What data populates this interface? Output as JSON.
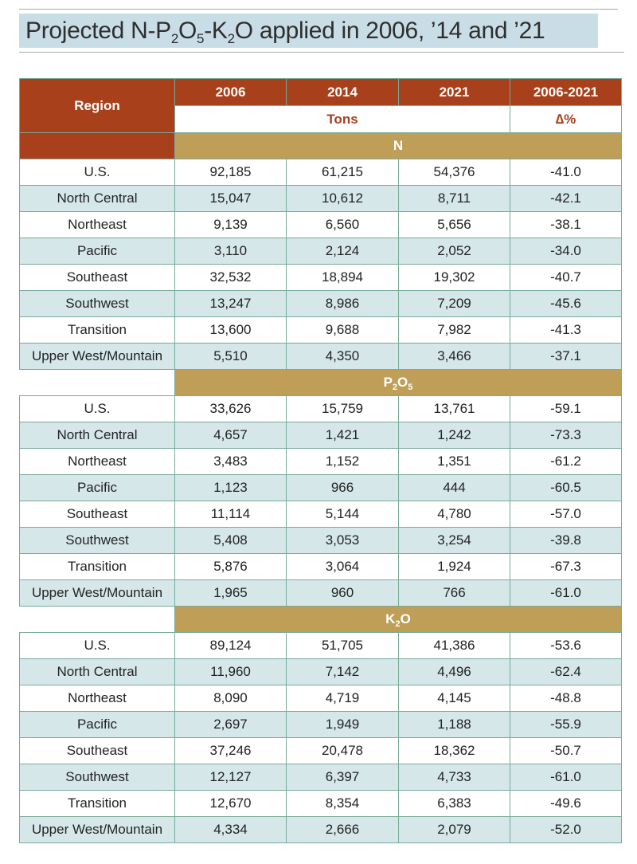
{
  "title": {
    "prefix": "Projected N-P",
    "sub1": "2",
    "mid1": "O",
    "sub2": "5",
    "mid2": "-K",
    "sub3": "2",
    "suffix": "O applied in 2006, ’14 and ’21"
  },
  "header": {
    "region": "Region",
    "years": [
      "2006",
      "2014",
      "2021",
      "2006-2021"
    ],
    "units_tons": "Tons",
    "units_delta": "∆%"
  },
  "sections": [
    {
      "label": "N",
      "label_parts": {
        "a": "N",
        "s1": "",
        "b": "",
        "s2": ""
      },
      "rows": [
        {
          "region": "U.S.",
          "v2006": "92,185",
          "v2014": "61,215",
          "v2021": "54,376",
          "delta": "-41.0"
        },
        {
          "region": "North Central",
          "v2006": "15,047",
          "v2014": "10,612",
          "v2021": "8,711",
          "delta": "-42.1"
        },
        {
          "region": "Northeast",
          "v2006": "9,139",
          "v2014": "6,560",
          "v2021": "5,656",
          "delta": "-38.1"
        },
        {
          "region": "Pacific",
          "v2006": "3,110",
          "v2014": "2,124",
          "v2021": "2,052",
          "delta": "-34.0"
        },
        {
          "region": "Southeast",
          "v2006": "32,532",
          "v2014": "18,894",
          "v2021": "19,302",
          "delta": "-40.7"
        },
        {
          "region": "Southwest",
          "v2006": "13,247",
          "v2014": "8,986",
          "v2021": "7,209",
          "delta": "-45.6"
        },
        {
          "region": "Transition",
          "v2006": "13,600",
          "v2014": "9,688",
          "v2021": "7,982",
          "delta": "-41.3"
        },
        {
          "region": "Upper West/Mountain",
          "v2006": "5,510",
          "v2014": "4,350",
          "v2021": "3,466",
          "delta": "-37.1"
        }
      ]
    },
    {
      "label": "P2O5",
      "label_parts": {
        "a": "P",
        "s1": "2",
        "b": "O",
        "s2": "5"
      },
      "rows": [
        {
          "region": "U.S.",
          "v2006": "33,626",
          "v2014": "15,759",
          "v2021": "13,761",
          "delta": "-59.1"
        },
        {
          "region": "North Central",
          "v2006": "4,657",
          "v2014": "1,421",
          "v2021": "1,242",
          "delta": "-73.3"
        },
        {
          "region": "Northeast",
          "v2006": "3,483",
          "v2014": "1,152",
          "v2021": "1,351",
          "delta": "-61.2"
        },
        {
          "region": "Pacific",
          "v2006": "1,123",
          "v2014": "966",
          "v2021": "444",
          "delta": "-60.5"
        },
        {
          "region": "Southeast",
          "v2006": "11,114",
          "v2014": "5,144",
          "v2021": "4,780",
          "delta": "-57.0"
        },
        {
          "region": "Southwest",
          "v2006": "5,408",
          "v2014": "3,053",
          "v2021": "3,254",
          "delta": "-39.8"
        },
        {
          "region": "Transition",
          "v2006": "5,876",
          "v2014": "3,064",
          "v2021": "1,924",
          "delta": "-67.3"
        },
        {
          "region": "Upper West/Mountain",
          "v2006": "1,965",
          "v2014": "960",
          "v2021": "766",
          "delta": "-61.0"
        }
      ]
    },
    {
      "label": "K2O",
      "label_parts": {
        "a": "K",
        "s1": "2",
        "b": "O",
        "s2": ""
      },
      "rows": [
        {
          "region": "U.S.",
          "v2006": "89,124",
          "v2014": "51,705",
          "v2021": "41,386",
          "delta": "-53.6"
        },
        {
          "region": "North Central",
          "v2006": "11,960",
          "v2014": "7,142",
          "v2021": "4,496",
          "delta": "-62.4"
        },
        {
          "region": "Northeast",
          "v2006": "8,090",
          "v2014": "4,719",
          "v2021": "4,145",
          "delta": "-48.8"
        },
        {
          "region": "Pacific",
          "v2006": "2,697",
          "v2014": "1,949",
          "v2021": "1,188",
          "delta": "-55.9"
        },
        {
          "region": "Southeast",
          "v2006": "37,246",
          "v2014": "20,478",
          "v2021": "18,362",
          "delta": "-50.7"
        },
        {
          "region": "Southwest",
          "v2006": "12,127",
          "v2014": "6,397",
          "v2021": "4,733",
          "delta": "-61.0"
        },
        {
          "region": "Transition",
          "v2006": "12,670",
          "v2014": "8,354",
          "v2021": "6,383",
          "delta": "-49.6"
        },
        {
          "region": "Upper West/Mountain",
          "v2006": "4,334",
          "v2014": "2,666",
          "v2021": "2,079",
          "delta": "-52.0"
        }
      ]
    }
  ]
}
